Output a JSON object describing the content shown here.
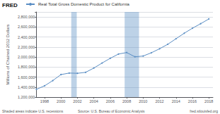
{
  "chart_data": {
    "type": "line",
    "x": [
      1997,
      1998,
      1999,
      2000,
      2001,
      2002,
      2003,
      2004,
      2005,
      2006,
      2007,
      2008,
      2009,
      2010,
      2011,
      2012,
      2013,
      2014,
      2015,
      2016,
      2017,
      2018
    ],
    "series": [
      {
        "name": "Real Total Gross Domestic Product for California",
        "color": "#5b8ec4",
        "marker": "circle",
        "values": [
          1355000,
          1425000,
          1530000,
          1650000,
          1680000,
          1675000,
          1695000,
          1780000,
          1880000,
          1975000,
          2060000,
          2090000,
          2005000,
          2020000,
          2085000,
          2165000,
          2255000,
          2365000,
          2475000,
          2575000,
          2665000,
          2760000
        ]
      }
    ],
    "ylabel": "Millions of Chained 2012 Dollars",
    "xlim": [
      1997.0,
      2018.5
    ],
    "xticks": [
      1998,
      2000,
      2002,
      2004,
      2006,
      2008,
      2010,
      2012,
      2014,
      2016,
      2018
    ],
    "ylim": [
      1200000,
      2900000
    ],
    "yticks": [
      {
        "value": 1200000,
        "label": "1,200,000"
      },
      {
        "value": 1400000,
        "label": "1,400,000"
      },
      {
        "value": 1600000,
        "label": "1,600,000"
      },
      {
        "value": 1800000,
        "label": "1,800,000"
      },
      {
        "value": 2000000,
        "label": "2,000,000"
      },
      {
        "value": 2200000,
        "label": "2,200,000"
      },
      {
        "value": 2400000,
        "label": "2,400,000"
      },
      {
        "value": 2600000,
        "label": "2,600,000"
      },
      {
        "value": 2800000,
        "label": "2,800,000"
      }
    ],
    "grid": true,
    "legend": "top",
    "shaded_ranges": [
      [
        2001.25,
        2001.92
      ],
      [
        2007.75,
        2009.5
      ]
    ],
    "annotations": [
      "FRED",
      "Shaded areas indicate U.S. recessions",
      "Source: U.S. Bureau of Economic Analysis",
      "fred.stlouisfed.org"
    ]
  }
}
